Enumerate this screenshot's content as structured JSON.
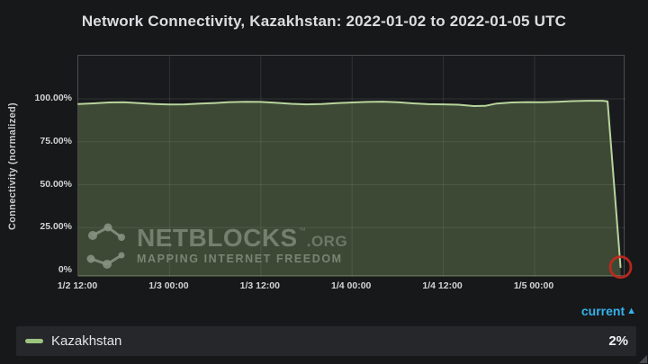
{
  "title": "Network Connectivity, Kazakhstan: 2022-01-02 to 2022-01-05 UTC",
  "watermark": {
    "brand": "NETBLOCKS",
    "tm": "™",
    "tld": ".ORG",
    "tagline": "MAPPING INTERNET FREEDOM",
    "logo_icon": "netblocks-node-graph"
  },
  "legend": {
    "sort_header": "current",
    "sort_arrow": "▲",
    "series_label": "Kazakhstan",
    "current_value": "2%"
  },
  "colors": {
    "background": "#17181a",
    "line": "#b7d49c",
    "area_fill": "rgba(140,175,105,0.32)",
    "grid": "rgba(255,255,255,0.10)",
    "annotation_red": "#c5281c",
    "legend_blue": "#35b1ea",
    "legend_dash_green": "#9bc47f"
  },
  "chart_data": {
    "type": "area",
    "title": "Network Connectivity, Kazakhstan: 2022-01-02 to 2022-01-05 UTC",
    "xlabel": "",
    "ylabel": "Connectivity (normalized)",
    "x_unit": "hours since 2022-01-02 12:00 UTC",
    "ylim": [
      0,
      125
    ],
    "grid": true,
    "legend_position": "bottom",
    "y_ticks": [
      {
        "label": "100.00%",
        "value": 100
      },
      {
        "label": "75.00%",
        "value": 75
      },
      {
        "label": "50.00%",
        "value": 50
      },
      {
        "label": "25.00%",
        "value": 25
      },
      {
        "label": "0%",
        "value": 0
      }
    ],
    "x_ticks": [
      {
        "label": "1/2 12:00",
        "t": 0
      },
      {
        "label": "1/3 00:00",
        "t": 12
      },
      {
        "label": "1/3 12:00",
        "t": 24
      },
      {
        "label": "1/4 00:00",
        "t": 36
      },
      {
        "label": "1/4 12:00",
        "t": 48
      },
      {
        "label": "1/5 00:00",
        "t": 60
      }
    ],
    "series": [
      {
        "name": "Kazakhstan",
        "color": "#b7d49c",
        "fill_color": "rgba(140,175,105,0.32)",
        "current": "2%",
        "points": [
          [
            0,
            97.0
          ],
          [
            2,
            97.4
          ],
          [
            4,
            97.9
          ],
          [
            6,
            98.0
          ],
          [
            8,
            97.5
          ],
          [
            10,
            97.0
          ],
          [
            12,
            96.7
          ],
          [
            14,
            96.8
          ],
          [
            16,
            97.2
          ],
          [
            18,
            97.6
          ],
          [
            20,
            98.1
          ],
          [
            22,
            98.3
          ],
          [
            24,
            98.2
          ],
          [
            26,
            97.7
          ],
          [
            28,
            97.1
          ],
          [
            30,
            96.8
          ],
          [
            32,
            97.0
          ],
          [
            34,
            97.5
          ],
          [
            36,
            97.9
          ],
          [
            38,
            98.2
          ],
          [
            40,
            98.4
          ],
          [
            42,
            98.0
          ],
          [
            44,
            97.4
          ],
          [
            46,
            96.9
          ],
          [
            48,
            96.8
          ],
          [
            50,
            96.6
          ],
          [
            52,
            95.8
          ],
          [
            53.5,
            95.9
          ],
          [
            55,
            97.3
          ],
          [
            57,
            97.9
          ],
          [
            59,
            98.1
          ],
          [
            61,
            98.0
          ],
          [
            63,
            98.3
          ],
          [
            65,
            98.7
          ],
          [
            67,
            98.9
          ],
          [
            69,
            98.9
          ],
          [
            69.6,
            98.5
          ],
          [
            71.3,
            2.0
          ]
        ]
      }
    ],
    "annotation": {
      "type": "circle",
      "color": "#c5281c",
      "point": [
        71.3,
        2.0
      ],
      "note": "connectivity drop highlighted"
    }
  }
}
